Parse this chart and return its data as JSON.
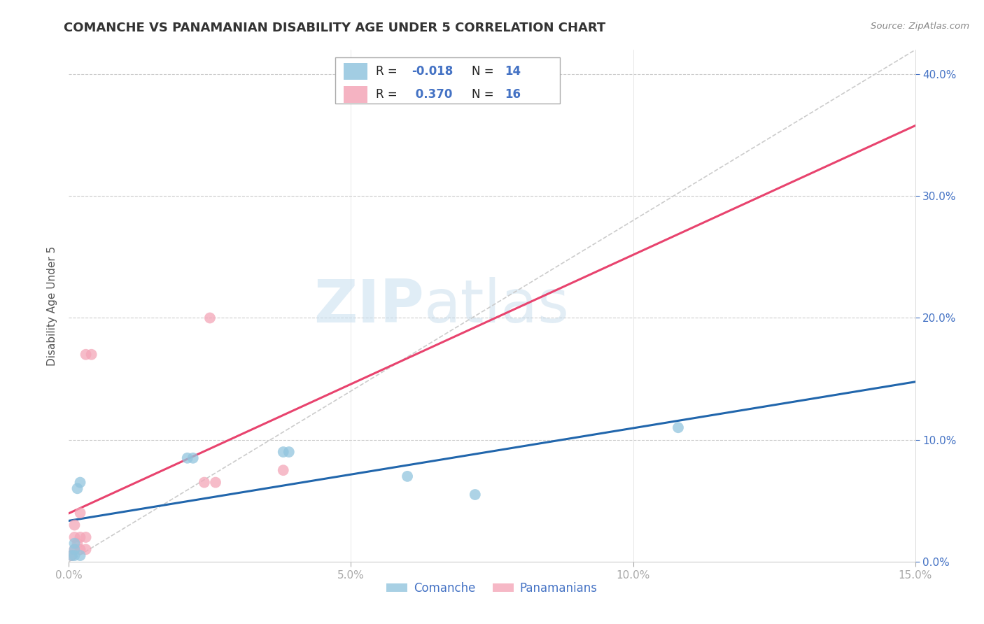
{
  "title": "COMANCHE VS PANAMANIAN DISABILITY AGE UNDER 5 CORRELATION CHART",
  "source": "Source: ZipAtlas.com",
  "ylabel_label": "Disability Age Under 5",
  "xlim": [
    0.0,
    0.15
  ],
  "ylim": [
    0.0,
    0.42
  ],
  "comanche_x": [
    0.0005,
    0.001,
    0.001,
    0.001,
    0.0015,
    0.002,
    0.002,
    0.021,
    0.022,
    0.038,
    0.039,
    0.06,
    0.072,
    0.108
  ],
  "comanche_y": [
    0.005,
    0.01,
    0.015,
    0.005,
    0.06,
    0.065,
    0.005,
    0.085,
    0.085,
    0.09,
    0.09,
    0.07,
    0.055,
    0.11
  ],
  "panamanian_x": [
    0.0005,
    0.001,
    0.001,
    0.001,
    0.0015,
    0.002,
    0.002,
    0.002,
    0.003,
    0.003,
    0.003,
    0.004,
    0.024,
    0.025,
    0.026,
    0.038
  ],
  "panamanian_y": [
    0.005,
    0.01,
    0.02,
    0.03,
    0.015,
    0.01,
    0.02,
    0.04,
    0.01,
    0.02,
    0.17,
    0.17,
    0.065,
    0.2,
    0.065,
    0.075
  ],
  "comanche_color": "#92c5de",
  "panamanian_color": "#f4a6b8",
  "comanche_r": -0.018,
  "comanche_n": 14,
  "panamanian_r": 0.37,
  "panamanian_n": 16,
  "trend_line_color_comanche": "#2166ac",
  "trend_line_color_panamanian": "#e8436e",
  "diagonal_color": "#cccccc",
  "watermark_zip": "ZIP",
  "watermark_atlas": "atlas",
  "legend_labels": [
    "Comanche",
    "Panamanians"
  ],
  "title_fontsize": 13,
  "axis_label_fontsize": 11,
  "tick_fontsize": 11,
  "marker_size": 130
}
